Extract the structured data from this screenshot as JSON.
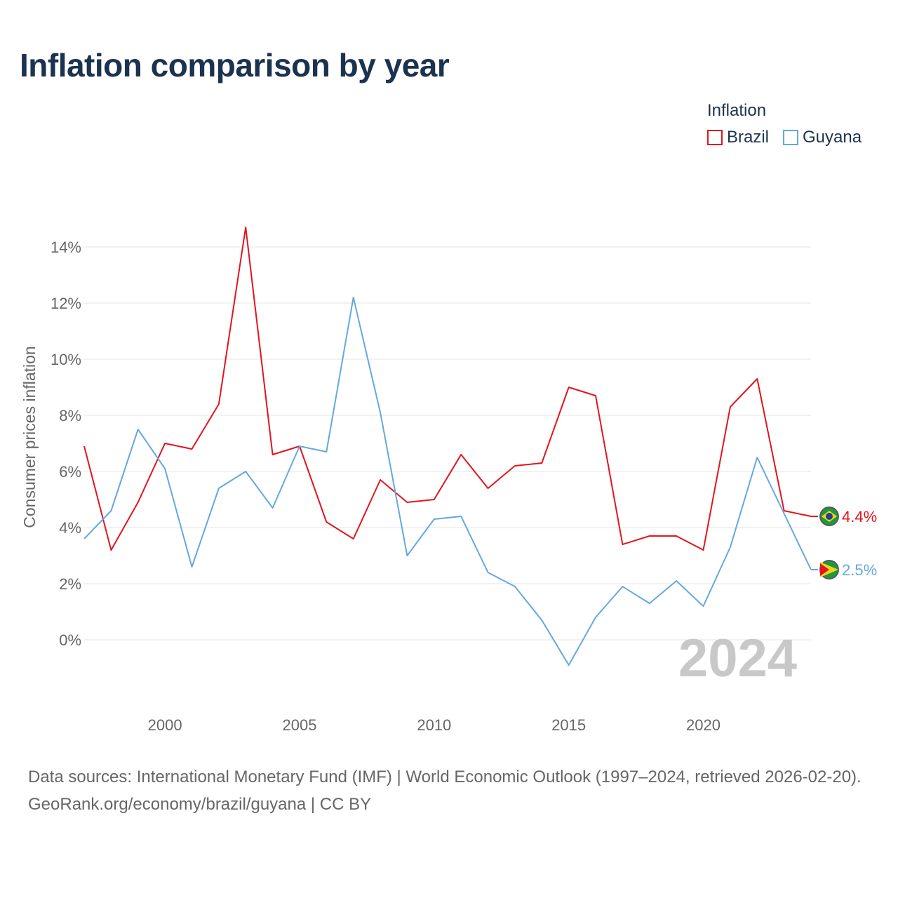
{
  "title": "Inflation comparison by year",
  "legend": {
    "title": "Inflation"
  },
  "sources": {
    "line1": "Data sources: International Monetary Fund (IMF) | World Economic Outlook (1997–2024, retrieved 2026-02-20).",
    "line2": "GeoRank.org/economy/brazil/guyana | CC BY"
  },
  "colors": {
    "brazil": "#e3141e",
    "guyana": "#64a8e0",
    "grid": "#e6e6e6",
    "axis_text": "#666666",
    "watermark": "#c8c8c8"
  },
  "chart_data": {
    "type": "line",
    "ylabel": "Consumer prices inflation",
    "xlabel": "",
    "xlim": [
      1997,
      2024
    ],
    "ylim": [
      -2.2,
      15.8
    ],
    "x_ticks": [
      2000,
      2005,
      2010,
      2015,
      2020
    ],
    "x_tick_labels": [
      "2000",
      "2005",
      "2010",
      "2015",
      "2020"
    ],
    "y_ticks": [
      0,
      2,
      4,
      6,
      8,
      10,
      12,
      14
    ],
    "y_tick_labels": [
      "0%",
      "2%",
      "4%",
      "6%",
      "8%",
      "10%",
      "12%",
      "14%"
    ],
    "grid": true,
    "legend_position": "top-right",
    "watermark": "2024",
    "x": [
      1997,
      1998,
      1999,
      2000,
      2001,
      2002,
      2003,
      2004,
      2005,
      2006,
      2007,
      2008,
      2009,
      2010,
      2011,
      2012,
      2013,
      2014,
      2015,
      2016,
      2017,
      2018,
      2019,
      2020,
      2021,
      2022,
      2023,
      2024
    ],
    "series": [
      {
        "name": "Brazil",
        "color": "#e3141e",
        "end_label": "4.4%",
        "values": [
          6.9,
          3.2,
          4.9,
          7.0,
          6.8,
          8.4,
          14.7,
          6.6,
          6.9,
          4.2,
          3.6,
          5.7,
          4.9,
          5.0,
          6.6,
          5.4,
          6.2,
          6.3,
          9.0,
          8.7,
          3.4,
          3.7,
          3.7,
          3.2,
          8.3,
          9.3,
          4.6,
          4.4
        ]
      },
      {
        "name": "Guyana",
        "color": "#64a8e0",
        "end_label": "2.5%",
        "values": [
          3.6,
          4.6,
          7.5,
          6.1,
          2.6,
          5.4,
          6.0,
          4.7,
          6.9,
          6.7,
          12.2,
          8.1,
          3.0,
          4.3,
          4.4,
          2.4,
          1.9,
          0.7,
          -0.9,
          0.8,
          1.9,
          1.3,
          2.1,
          1.2,
          3.3,
          6.5,
          4.5,
          2.5
        ]
      }
    ]
  }
}
